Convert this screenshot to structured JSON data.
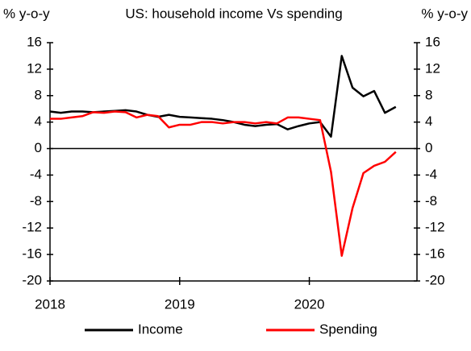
{
  "chart_data": {
    "type": "line",
    "title": "US: household income Vs spending",
    "ylabel": "% y-o-y",
    "y2label": "% y-o-y",
    "x": [
      2018,
      2018.083,
      2018.167,
      2018.25,
      2018.333,
      2018.417,
      2018.5,
      2018.583,
      2018.667,
      2018.75,
      2018.833,
      2018.917,
      2019,
      2019.083,
      2019.167,
      2019.25,
      2019.333,
      2019.417,
      2019.5,
      2019.583,
      2019.667,
      2019.75,
      2019.833,
      2019.917,
      2020,
      2020.083,
      2020.167,
      2020.25,
      2020.333,
      2020.417,
      2020.5,
      2020.583,
      2020.667
    ],
    "series": [
      {
        "name": "Income",
        "color": "#000000",
        "values": [
          5.6,
          5.4,
          5.6,
          5.6,
          5.5,
          5.6,
          5.7,
          5.8,
          5.6,
          5.1,
          4.8,
          5.1,
          4.8,
          4.7,
          4.6,
          4.5,
          4.3,
          4.0,
          3.6,
          3.4,
          3.6,
          3.7,
          2.9,
          3.4,
          3.8,
          4.0,
          1.8,
          14.0,
          9.2,
          7.9,
          8.7,
          5.4,
          6.3
        ]
      },
      {
        "name": "Spending",
        "color": "#ff0000",
        "values": [
          4.5,
          4.5,
          4.7,
          4.9,
          5.5,
          5.4,
          5.6,
          5.5,
          4.7,
          5.1,
          4.9,
          3.2,
          3.6,
          3.6,
          4.0,
          4.0,
          3.8,
          4.0,
          4.0,
          3.8,
          4.0,
          3.8,
          4.7,
          4.7,
          4.5,
          4.3,
          -3.5,
          -16.2,
          -9.0,
          -3.7,
          -2.6,
          -2.0,
          -0.5
        ]
      }
    ],
    "xlim": [
      2018,
      2020.83
    ],
    "xticks": [
      2018,
      2019,
      2020
    ],
    "ylim": [
      -20,
      16
    ],
    "yticks": [
      -20,
      -16,
      -12,
      -8,
      -4,
      0,
      4,
      8,
      12,
      16
    ],
    "y2lim": [
      -20,
      16
    ],
    "y2ticks": [
      -20,
      -16,
      -12,
      -8,
      -4,
      0,
      4,
      8,
      12,
      16
    ],
    "legend": "bottom"
  }
}
